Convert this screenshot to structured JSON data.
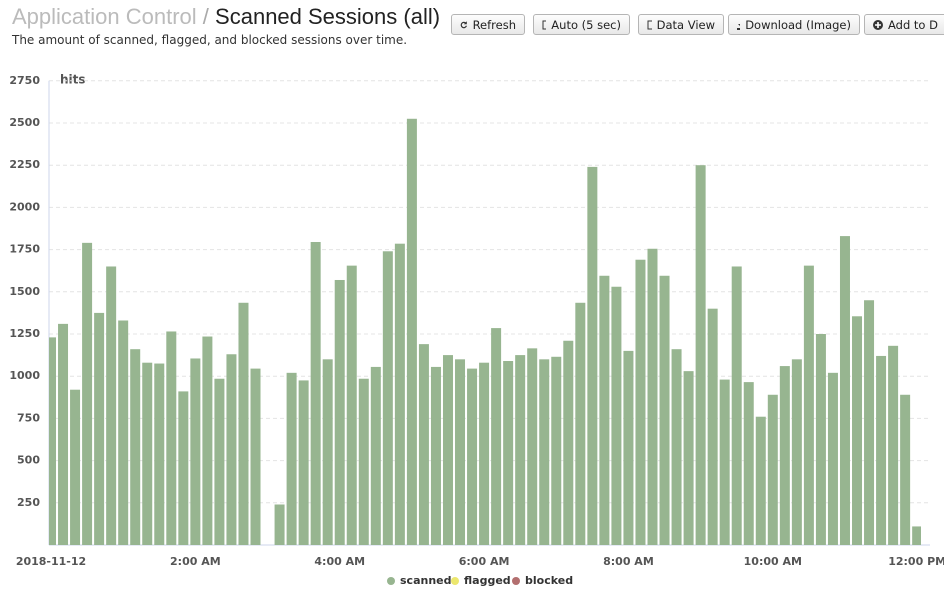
{
  "header": {
    "section": "Application Control",
    "separator": "/",
    "title": "Scanned Sessions (all)",
    "description": "The amount of scanned, flagged, and blocked sessions over time."
  },
  "buttons": [
    "Refresh",
    "Auto (5 sec)",
    "Data View",
    "Download (Image)",
    "Add to D"
  ],
  "chart_data": {
    "type": "bar",
    "y_label": "hits",
    "categories": [
      "2018-11-12",
      null,
      null,
      null,
      null,
      null,
      null,
      null,
      null,
      null,
      null,
      null,
      "2:00 AM",
      null,
      null,
      null,
      null,
      null,
      null,
      null,
      null,
      null,
      null,
      null,
      "4:00 AM",
      null,
      null,
      null,
      null,
      null,
      null,
      null,
      null,
      null,
      null,
      null,
      "6:00 AM",
      null,
      null,
      null,
      null,
      null,
      null,
      null,
      null,
      null,
      null,
      null,
      "8:00 AM",
      null,
      null,
      null,
      null,
      null,
      null,
      null,
      null,
      null,
      null,
      null,
      "10:00 AM",
      null,
      null,
      null,
      null,
      null,
      null,
      null,
      null,
      null,
      null,
      null,
      "12:00 PM"
    ],
    "series": [
      {
        "name": "scanned",
        "color": "#97b590",
        "values": [
          1230,
          1310,
          920,
          1790,
          1375,
          1650,
          1330,
          1160,
          1080,
          1075,
          1265,
          910,
          1105,
          1235,
          985,
          1130,
          1435,
          1045,
          null,
          240,
          1020,
          975,
          1795,
          1100,
          1570,
          1655,
          985,
          1055,
          1740,
          1785,
          2525,
          1190,
          1055,
          1125,
          1100,
          1045,
          1080,
          1285,
          1090,
          1125,
          1165,
          1100,
          1115,
          1210,
          1435,
          2240,
          1595,
          1530,
          1150,
          1690,
          1755,
          1595,
          1160,
          1030,
          2250,
          1400,
          980,
          1650,
          965,
          760,
          890,
          1060,
          1100,
          1655,
          1250,
          1020,
          1830,
          1355,
          1450,
          1120,
          1180,
          890,
          110
        ]
      },
      {
        "name": "flagged",
        "color": "#ece76e"
      },
      {
        "name": "blocked",
        "color": "#b36f6f"
      }
    ],
    "ylim": [
      0,
      2750
    ],
    "yticks": [
      250,
      500,
      750,
      1000,
      1250,
      1500,
      1750,
      2000,
      2250,
      2500,
      2750
    ],
    "grid": true
  }
}
